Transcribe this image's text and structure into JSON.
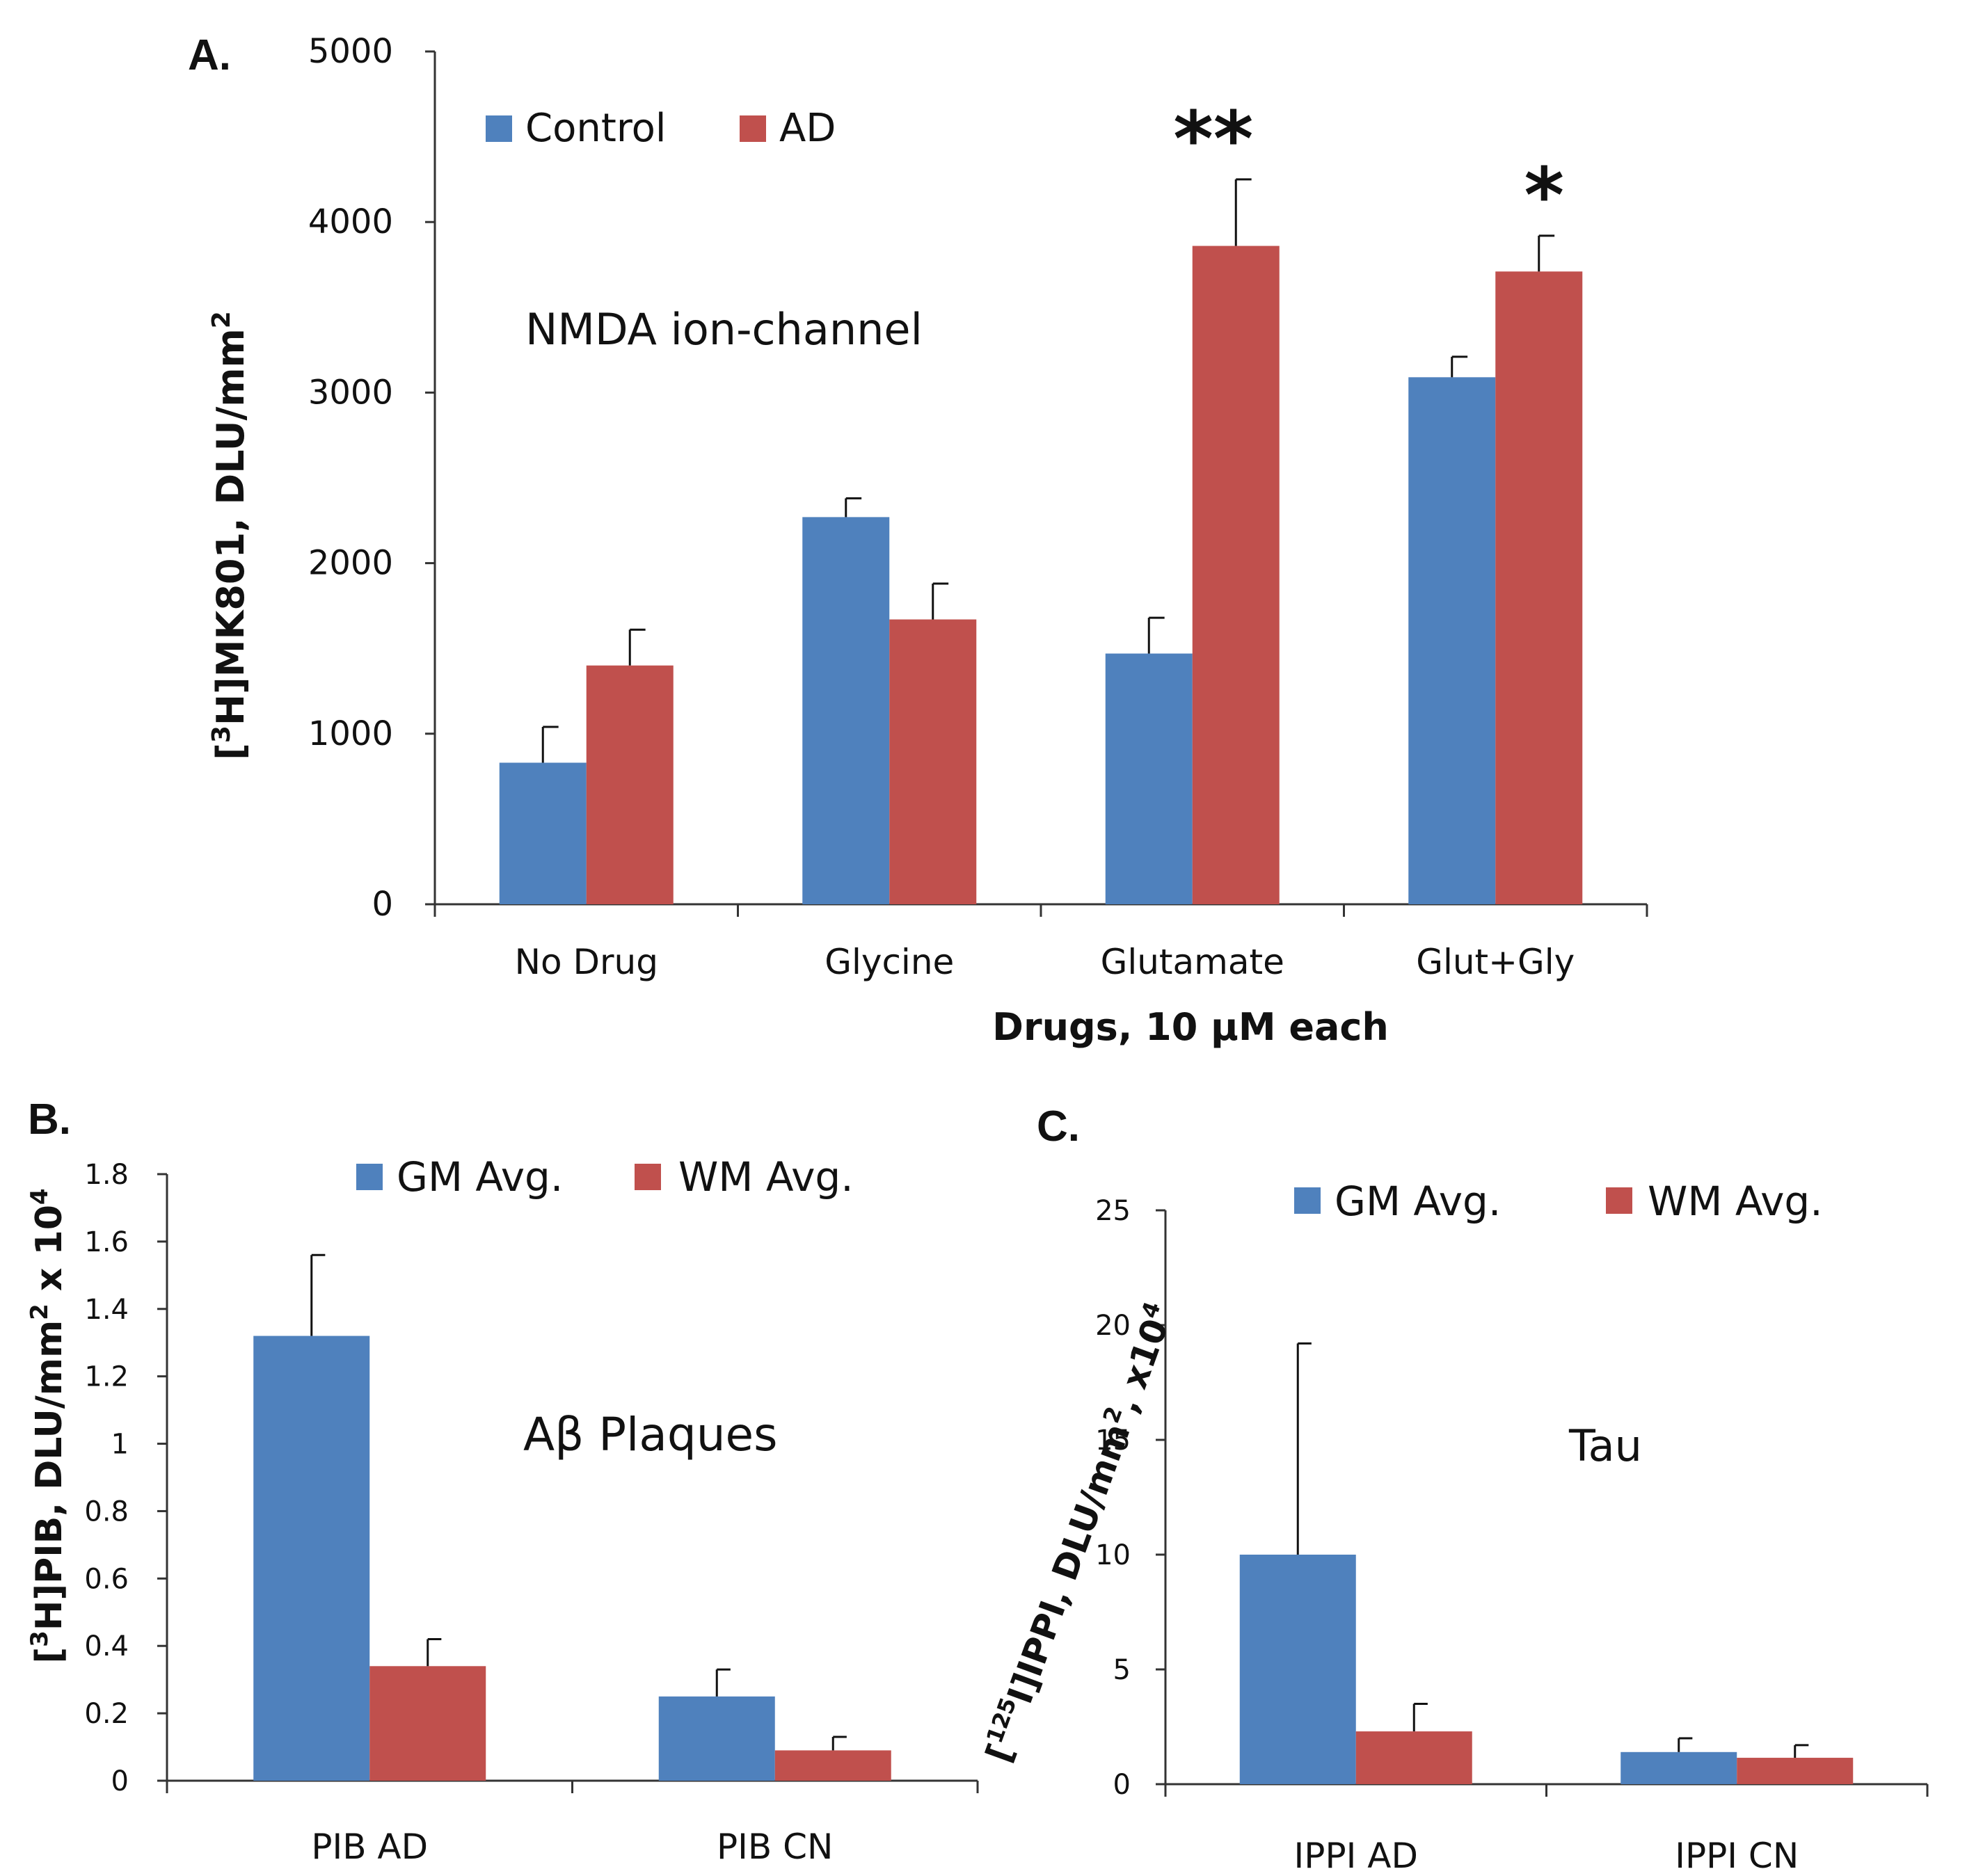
{
  "colors": {
    "control": "#4f81bd",
    "ad": "#c0504d",
    "axis": "#333333"
  },
  "chart_data": [
    {
      "panel": "A.",
      "type": "bar",
      "annotation": "NMDA ion-channel",
      "xlabel": "Drugs, 10 µM each",
      "ylabel_pre": "[",
      "ylabel_sup": "3",
      "ylabel_post": "H]MK801, DLU/mm",
      "ylabel_sup2": "2",
      "ylim": [
        0,
        5000
      ],
      "yticks": [
        "0",
        "1000",
        "2000",
        "3000",
        "4000",
        "5000"
      ],
      "categories": [
        "No Drug",
        "Glycine",
        "Glutamate",
        "Glut+Gly"
      ],
      "series": [
        {
          "name": "Control",
          "values": [
            830,
            2270,
            1470,
            3090
          ],
          "errors": [
            210,
            110,
            210,
            120
          ]
        },
        {
          "name": "AD",
          "values": [
            1400,
            1670,
            3860,
            3710
          ],
          "errors": [
            210,
            210,
            390,
            210
          ]
        }
      ],
      "significance": [
        {
          "category": "Glutamate",
          "label": "**"
        },
        {
          "category": "Glut+Gly",
          "label": "*"
        }
      ]
    },
    {
      "panel": "B.",
      "type": "bar",
      "annotation": "Aβ Plaques",
      "ylabel_pre": "[",
      "ylabel_sup": "3",
      "ylabel_post": "H]PIB, DLU/mm",
      "ylabel_sup2": "2",
      "ylabel_post2": " x 10",
      "ylabel_sup3": "4",
      "ylim": [
        0,
        1.8
      ],
      "yticks": [
        "0",
        "0.2",
        "0.4",
        "0.6",
        "0.8",
        "1",
        "1.2",
        "1.4",
        "1.6",
        "1.8"
      ],
      "categories": [
        "PIB AD",
        "PIB CN"
      ],
      "series": [
        {
          "name": "GM Avg.",
          "values": [
            1.32,
            0.25
          ],
          "errors": [
            0.24,
            0.08
          ]
        },
        {
          "name": "WM Avg.",
          "values": [
            0.34,
            0.09
          ],
          "errors": [
            0.08,
            0.04
          ]
        }
      ]
    },
    {
      "panel": "C.",
      "type": "bar",
      "annotation": "Tau",
      "ylabel_pre": "[",
      "ylabel_sup": "125",
      "ylabel_post": "I]IPPI, DLU/mm",
      "ylabel_sup2": "2",
      "ylabel_post2": ", x10",
      "ylabel_sup3": "4",
      "ylim": [
        0,
        25
      ],
      "yticks": [
        "0",
        "5",
        "10",
        "15",
        "20",
        "25"
      ],
      "categories": [
        "IPPI AD",
        "IPPI CN"
      ],
      "series": [
        {
          "name": "GM Avg.",
          "values": [
            10.0,
            1.4
          ],
          "errors": [
            9.2,
            0.6
          ]
        },
        {
          "name": "WM Avg.",
          "values": [
            2.3,
            1.15
          ],
          "errors": [
            1.2,
            0.55
          ]
        }
      ]
    }
  ]
}
